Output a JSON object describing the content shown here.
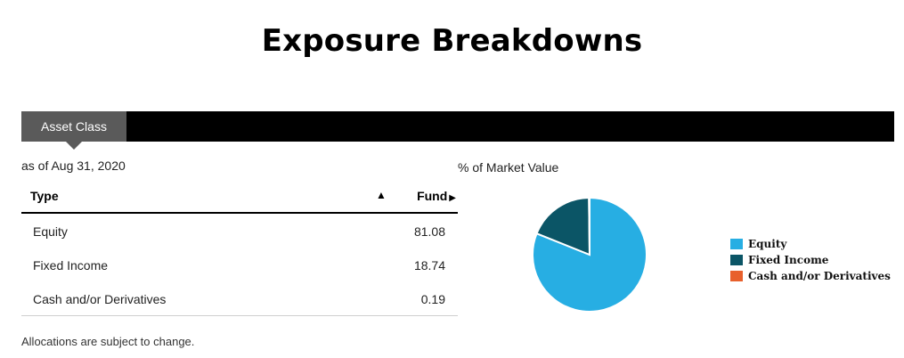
{
  "page": {
    "title": "Exposure Breakdowns"
  },
  "tabs": [
    {
      "label": "Asset Class",
      "active": true
    }
  ],
  "as_of": "as of Aug 31, 2020",
  "table": {
    "headers": {
      "type": "Type",
      "fund": "Fund",
      "sort_indicator": "▲"
    },
    "rows": [
      {
        "type": "Equity",
        "fund": "81.08"
      },
      {
        "type": "Fixed Income",
        "fund": "18.74"
      },
      {
        "type": "Cash and/or Derivatives",
        "fund": "0.19"
      }
    ]
  },
  "footnote": "Allocations are subject to change.",
  "chart_caption": "% of Market Value",
  "chart_data": {
    "type": "pie",
    "title": "",
    "categories": [
      "Equity",
      "Fixed Income",
      "Cash and/or Derivatives"
    ],
    "values": [
      81.08,
      18.74,
      0.19
    ],
    "colors": [
      "#27aee3",
      "#0b5566",
      "#e8602c"
    ],
    "legend": "right"
  },
  "colors": {
    "tab_bar": "#000000",
    "tab_active": "#5a5a5a"
  }
}
